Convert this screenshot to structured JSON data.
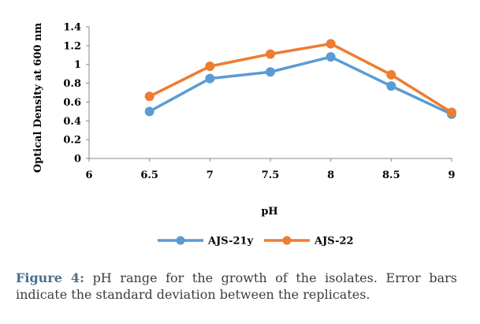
{
  "chart_data": {
    "type": "line",
    "x": [
      6.5,
      7,
      7.5,
      8,
      8.5,
      9
    ],
    "x_ticks": [
      "6",
      "6.5",
      "7",
      "7.5",
      "8",
      "8.5",
      "9"
    ],
    "xlim": [
      6,
      9
    ],
    "y_ticks": [
      "0",
      "0.2",
      "0.4",
      "0.6",
      "0.8",
      "1",
      "1.2",
      "1.4"
    ],
    "ylim": [
      0,
      1.4
    ],
    "xlabel": "pH",
    "ylabel": "Optical Density at 600 nm",
    "legend_position": "bottom",
    "grid": false,
    "series": [
      {
        "name": "AJS-21y",
        "color": "#5b9bd5",
        "values": [
          0.5,
          0.85,
          0.92,
          1.08,
          0.77,
          0.47
        ]
      },
      {
        "name": "AJS-22",
        "color": "#ed7d31",
        "values": [
          0.66,
          0.98,
          1.11,
          1.22,
          0.89,
          0.49
        ]
      }
    ]
  },
  "caption": {
    "label": "Figure 4:",
    "text": " pH range for the growth of the isolates. Error bars indicate the standard deviation between the replicates."
  }
}
